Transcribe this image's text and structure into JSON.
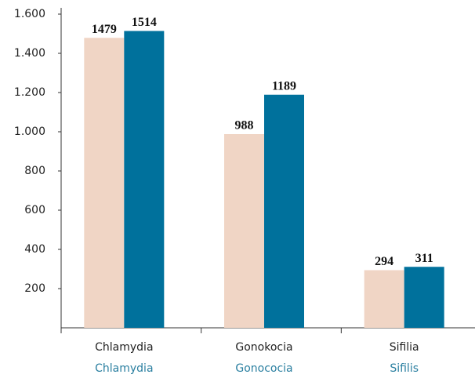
{
  "chart_data": {
    "type": "bar",
    "categories": [
      "Chlamydia",
      "Gonokocia",
      "Sifilia"
    ],
    "category_translations": [
      "Chlamydia",
      "Gonococia",
      "Sifilis"
    ],
    "series": [
      {
        "color": "#f0d5c5",
        "values": [
          1479,
          988,
          294
        ]
      },
      {
        "color": "#00719c",
        "values": [
          1514,
          1189,
          311
        ]
      }
    ],
    "ylim": [
      0,
      1600
    ],
    "yticks": [
      200,
      400,
      600,
      800,
      {
        "value": 1000,
        "label": "1.000"
      },
      {
        "value": 1200,
        "label": "1.200"
      },
      {
        "value": 1400,
        "label": "1.400"
      },
      {
        "value": 1600,
        "label": "1.600"
      }
    ]
  }
}
